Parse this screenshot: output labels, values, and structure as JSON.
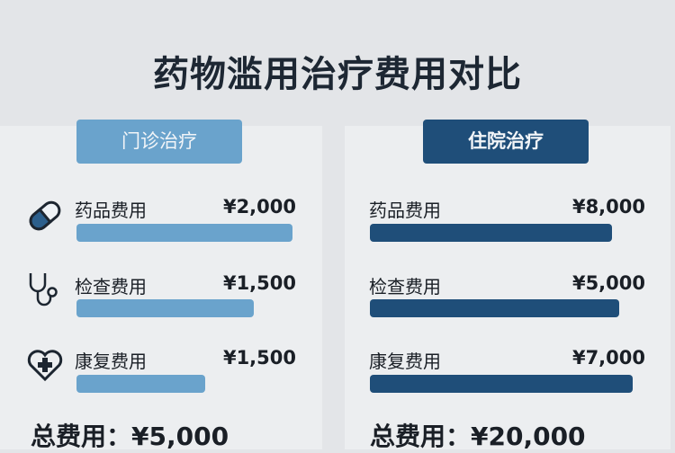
{
  "title": "药物滥用治疗费用对比",
  "outpatient": {
    "header": "门诊治疗",
    "items": [
      {
        "label": "药品费用",
        "value": "¥2,000",
        "icon": "pill-icon"
      },
      {
        "label": "检查费用",
        "value": "¥1,500",
        "icon": "stethoscope-icon"
      },
      {
        "label": "康复费用",
        "value": "¥1,500",
        "icon": "heart-plus-icon"
      }
    ],
    "total": "总费用：¥5,000",
    "bar_color": "#6aa3cc"
  },
  "inpatient": {
    "header": "住院治疗",
    "items": [
      {
        "label": "药品费用",
        "value": "¥8,000"
      },
      {
        "label": "检查费用",
        "value": "¥5,000"
      },
      {
        "label": "康复费用",
        "value": "¥7,000"
      }
    ],
    "total": "总费用：¥20,000",
    "bar_color": "#1f4e79"
  }
}
